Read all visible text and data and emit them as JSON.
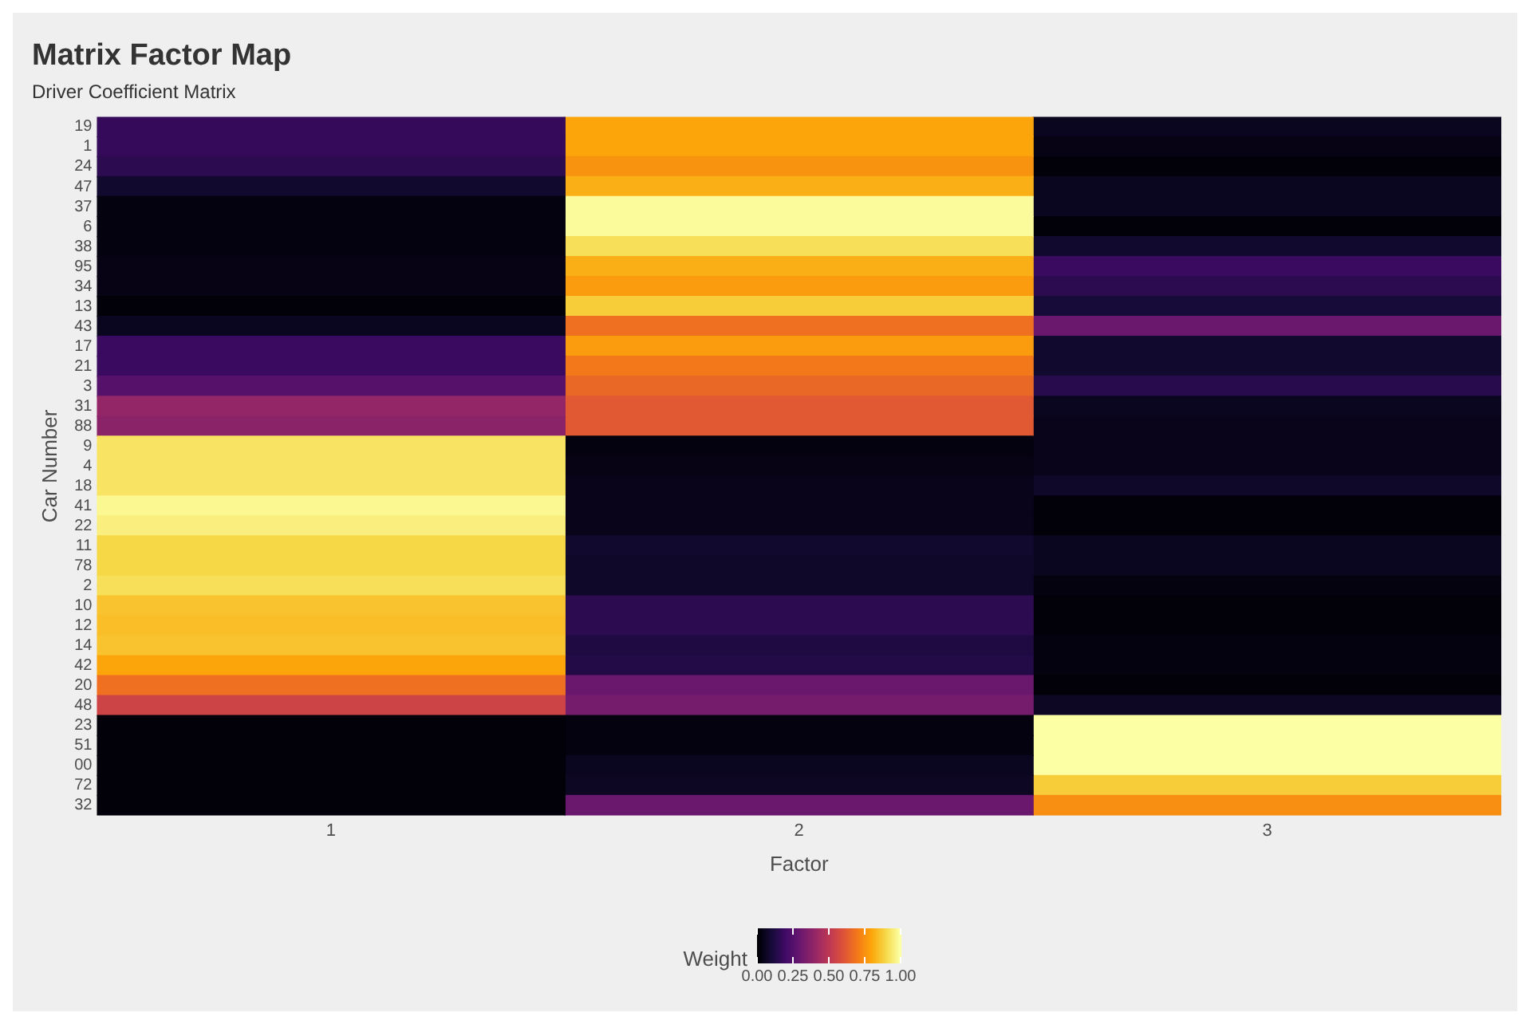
{
  "chart_data": {
    "type": "heatmap",
    "title": "Matrix Factor Map",
    "subtitle": "Driver Coefficient Matrix",
    "xlabel": "Factor",
    "ylabel": "Car Number",
    "clabel": "Weight",
    "categories": [
      "1",
      "2",
      "3"
    ],
    "y_categories": [
      "19",
      "1",
      "24",
      "47",
      "37",
      "6",
      "38",
      "95",
      "34",
      "13",
      "43",
      "17",
      "21",
      "3",
      "31",
      "88",
      "9",
      "4",
      "18",
      "41",
      "22",
      "11",
      "78",
      "2",
      "10",
      "12",
      "14",
      "42",
      "20",
      "48",
      "23",
      "51",
      "00",
      "72",
      "32"
    ],
    "cells": [
      [
        0.17,
        0.8,
        0.05
      ],
      [
        0.17,
        0.8,
        0.03
      ],
      [
        0.15,
        0.76,
        0.01
      ],
      [
        0.08,
        0.82,
        0.05
      ],
      [
        0.02,
        0.99,
        0.05
      ],
      [
        0.02,
        0.99,
        0.01
      ],
      [
        0.02,
        0.92,
        0.08
      ],
      [
        0.03,
        0.82,
        0.18
      ],
      [
        0.03,
        0.78,
        0.15
      ],
      [
        0.01,
        0.88,
        0.1
      ],
      [
        0.05,
        0.68,
        0.3
      ],
      [
        0.18,
        0.78,
        0.08
      ],
      [
        0.18,
        0.7,
        0.08
      ],
      [
        0.25,
        0.66,
        0.14
      ],
      [
        0.4,
        0.62,
        0.05
      ],
      [
        0.38,
        0.62,
        0.04
      ],
      [
        0.93,
        0.02,
        0.04
      ],
      [
        0.93,
        0.03,
        0.04
      ],
      [
        0.93,
        0.04,
        0.07
      ],
      [
        0.98,
        0.04,
        0.01
      ],
      [
        0.96,
        0.04,
        0.01
      ],
      [
        0.9,
        0.08,
        0.05
      ],
      [
        0.9,
        0.07,
        0.05
      ],
      [
        0.92,
        0.07,
        0.02
      ],
      [
        0.86,
        0.15,
        0.01
      ],
      [
        0.85,
        0.15,
        0.01
      ],
      [
        0.86,
        0.12,
        0.02
      ],
      [
        0.8,
        0.13,
        0.02
      ],
      [
        0.68,
        0.3,
        0.01
      ],
      [
        0.55,
        0.33,
        0.06
      ],
      [
        0.01,
        0.02,
        1.0
      ],
      [
        0.01,
        0.02,
        1.0
      ],
      [
        0.01,
        0.05,
        1.0
      ],
      [
        0.01,
        0.06,
        0.88
      ],
      [
        0.01,
        0.3,
        0.75
      ]
    ],
    "clim": [
      0,
      1
    ],
    "cticks": [
      {
        "value": 0,
        "label": "0.00"
      },
      {
        "value": 0.25,
        "label": "0.25"
      },
      {
        "value": 0.5,
        "label": "0.50"
      },
      {
        "value": 0.75,
        "label": "0.75"
      },
      {
        "value": 1,
        "label": "1.00"
      }
    ],
    "grid": "y"
  }
}
